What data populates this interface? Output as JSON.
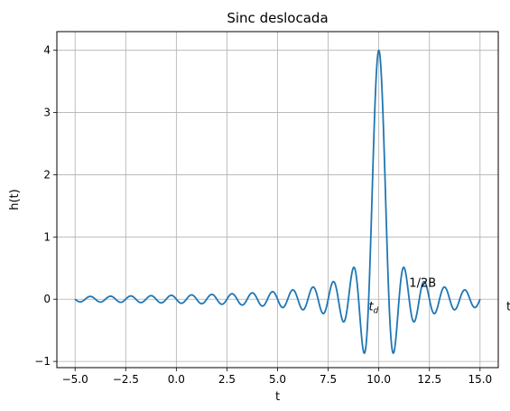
{
  "chart_data": {
    "type": "line",
    "title": "Sinc deslocada",
    "xlabel": "t",
    "ylabel": "h(t)",
    "xlim": [
      -5.9,
      15.9
    ],
    "ylim": [
      -1.1,
      4.3
    ],
    "xticks": [
      -5.0,
      -2.5,
      0.0,
      2.5,
      5.0,
      7.5,
      10.0,
      12.5,
      15.0
    ],
    "xtick_labels": [
      "−5.0",
      "−2.5",
      "0.0",
      "2.5",
      "5.0",
      "7.5",
      "10.0",
      "12.5",
      "15.0"
    ],
    "yticks": [
      -1,
      0,
      1,
      2,
      3,
      4
    ],
    "ytick_labels": [
      "−1",
      "0",
      "1",
      "2",
      "3",
      "4"
    ],
    "grid": true,
    "series": [
      {
        "color": "#1f77b4",
        "function": "2B*2*sinc(2B(t - t_d))",
        "parameters": {
          "B": 1.0,
          "t_d": 10.0,
          "amplitude": 4.0
        },
        "x_range": [
          -5.0,
          15.0
        ],
        "samples": 800
      }
    ],
    "annotations": [
      {
        "text_main": "t",
        "text_sub": "d",
        "x": 9.5,
        "y": -0.18
      },
      {
        "text": "1/2B",
        "x": 11.5,
        "y": 0.2
      },
      {
        "text": "t",
        "x": 16.3,
        "y": -0.18
      }
    ]
  }
}
